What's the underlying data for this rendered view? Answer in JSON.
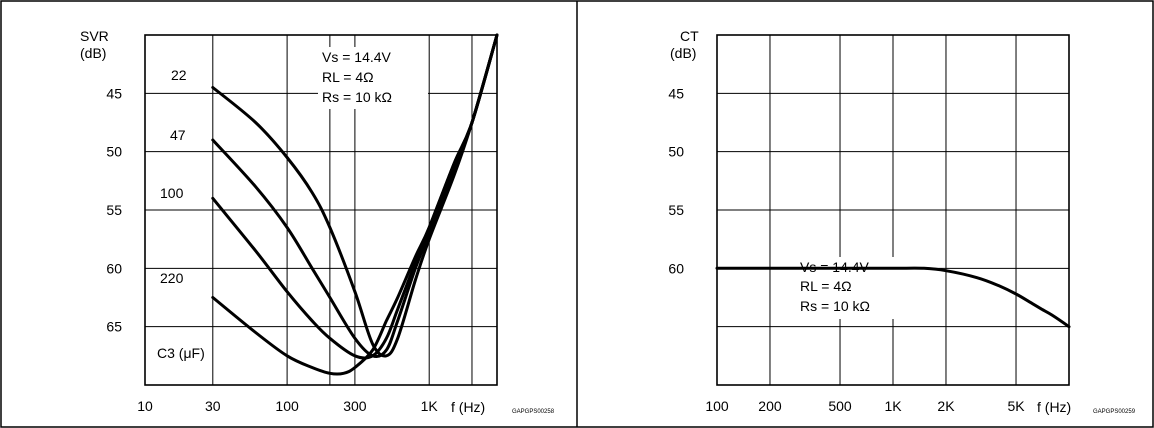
{
  "chart_data": [
    {
      "type": "line",
      "title": "",
      "ylabel": "SVR\n(dB)",
      "xlabel": "f (Hz)",
      "x_scale": "log",
      "y_scale": "linear, inverted (larger dB downward)",
      "xlim": [
        10,
        3000
      ],
      "ylim": [
        40,
        70
      ],
      "x_ticks": [
        10,
        30,
        100,
        300,
        1000
      ],
      "x_tick_labels": [
        "10",
        "30",
        "100",
        "300",
        "1K"
      ],
      "y_ticks": [
        45,
        50,
        55,
        60,
        65
      ],
      "y_tick_labels": [
        "45",
        "50",
        "55",
        "60",
        "65"
      ],
      "grid": true,
      "conditions": [
        "Vs = 14.4V",
        "RL = 4Ω",
        "Rs = 10 kΩ"
      ],
      "series_title": "C3 (μF)",
      "code": "GAPGPS00258",
      "series": [
        {
          "name": "22",
          "x": [
            30,
            60,
            100,
            150,
            200,
            300,
            400,
            500,
            600,
            800,
            1000,
            1500,
            2000,
            3000
          ],
          "y": [
            44.5,
            47.5,
            50.5,
            53.5,
            56.5,
            62,
            66.5,
            67.5,
            66,
            61,
            57.5,
            52,
            47.5,
            40
          ]
        },
        {
          "name": "47",
          "x": [
            30,
            60,
            100,
            150,
            200,
            300,
            400,
            500,
            600,
            800,
            1000,
            1500,
            2000,
            3000
          ],
          "y": [
            49,
            53,
            56.5,
            60,
            62.5,
            66,
            67.5,
            67,
            64.5,
            60,
            57,
            51.5,
            47.5,
            40
          ]
        },
        {
          "name": "100",
          "x": [
            30,
            60,
            100,
            150,
            200,
            300,
            400,
            500,
            600,
            800,
            1000,
            1500,
            2000,
            3000
          ],
          "y": [
            54,
            58.5,
            62,
            64.5,
            66,
            67.5,
            67.5,
            66,
            63.5,
            59.5,
            56.5,
            51,
            47.5,
            40
          ]
        },
        {
          "name": "220",
          "x": [
            30,
            60,
            100,
            150,
            200,
            250,
            300,
            400,
            500,
            600,
            800,
            1000,
            1500,
            2000,
            3000
          ],
          "y": [
            62.5,
            65.5,
            67.5,
            68.5,
            69,
            69,
            68.5,
            67,
            64.5,
            62.5,
            59,
            56.5,
            51,
            47.5,
            40
          ]
        }
      ]
    },
    {
      "type": "line",
      "title": "",
      "ylabel": "CT\n(dB)",
      "xlabel": "f (Hz)",
      "x_scale": "log",
      "y_scale": "linear, inverted (larger dB downward)",
      "xlim": [
        100,
        10000
      ],
      "ylim": [
        40,
        70
      ],
      "x_ticks": [
        100,
        200,
        500,
        1000,
        2000,
        5000
      ],
      "x_tick_labels": [
        "100",
        "200",
        "500",
        "1K",
        "2K",
        "5K"
      ],
      "y_ticks": [
        45,
        50,
        55,
        60
      ],
      "y_tick_labels": [
        "45",
        "50",
        "55",
        "60"
      ],
      "grid": true,
      "conditions": [
        "Vs = 14.4V",
        "RL = 4Ω",
        "Rs = 10 kΩ"
      ],
      "code": "GAPGPS00259",
      "series": [
        {
          "name": "",
          "x": [
            100,
            200,
            500,
            1000,
            1500,
            2000,
            3000,
            4000,
            5000,
            6000,
            7000,
            8000,
            10000
          ],
          "y": [
            60,
            60,
            60,
            60,
            60,
            60.2,
            60.8,
            61.5,
            62.2,
            62.9,
            63.5,
            64,
            65
          ]
        }
      ]
    }
  ]
}
